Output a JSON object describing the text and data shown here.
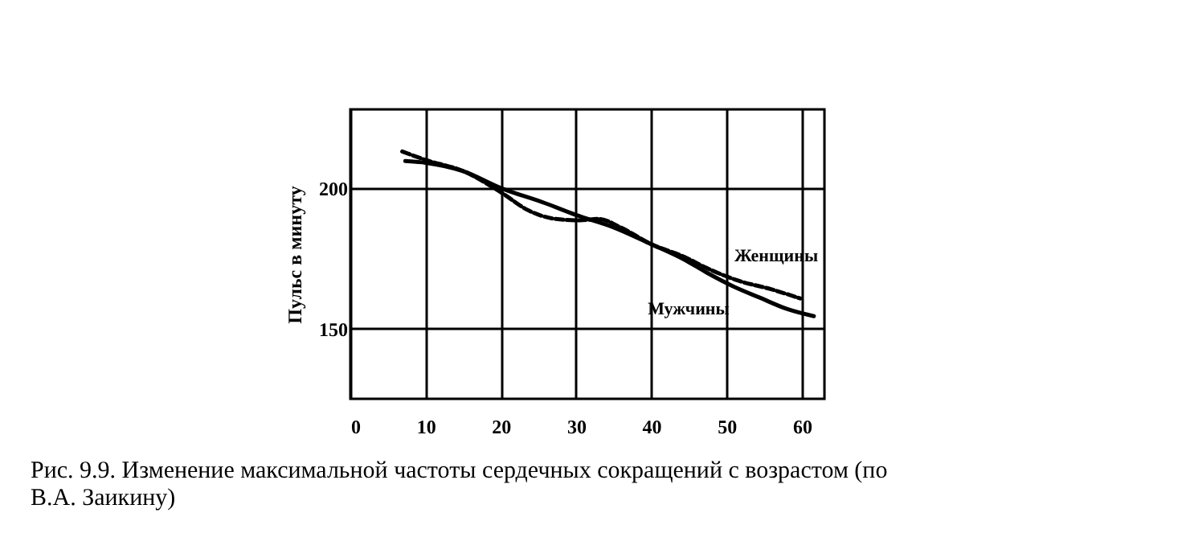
{
  "chart_data": {
    "type": "line",
    "ylabel": "Пульс в минуту",
    "annotations": [
      "Рис. 9.9. Изменение максимальной частоты сердечных сокращений с возрастом (по В.А. Заикину)"
    ],
    "xlim": [
      0,
      63
    ],
    "xticks": [
      0,
      10,
      20,
      30,
      40,
      50,
      60
    ],
    "ylim": [
      125,
      228
    ],
    "yticks": [
      150,
      200
    ],
    "grid": true,
    "series": [
      {
        "name": "Женщины",
        "color": "#000000",
        "line_style": "dashed",
        "x": [
          6.9,
          10,
          15,
          20,
          23.7,
          27.3,
          30.5,
          33,
          35.9,
          40,
          44.4,
          47.3,
          51.6,
          55.9,
          59.8
        ],
        "values": [
          213,
          210,
          206,
          198.5,
          192,
          189,
          188.5,
          189,
          186,
          180,
          175.5,
          171.6,
          167,
          164,
          160.7
        ]
      },
      {
        "name": "Мужчины",
        "color": "#000000",
        "line_style": "solid",
        "x": [
          7.3,
          10,
          15,
          20,
          25.9,
          30,
          35,
          40,
          44.4,
          47.3,
          50.9,
          54.4,
          58,
          61.6
        ],
        "values": [
          209.6,
          209,
          206,
          200,
          194.6,
          190.4,
          186,
          180,
          174.5,
          170,
          165,
          161,
          157,
          154.4
        ]
      }
    ]
  }
}
